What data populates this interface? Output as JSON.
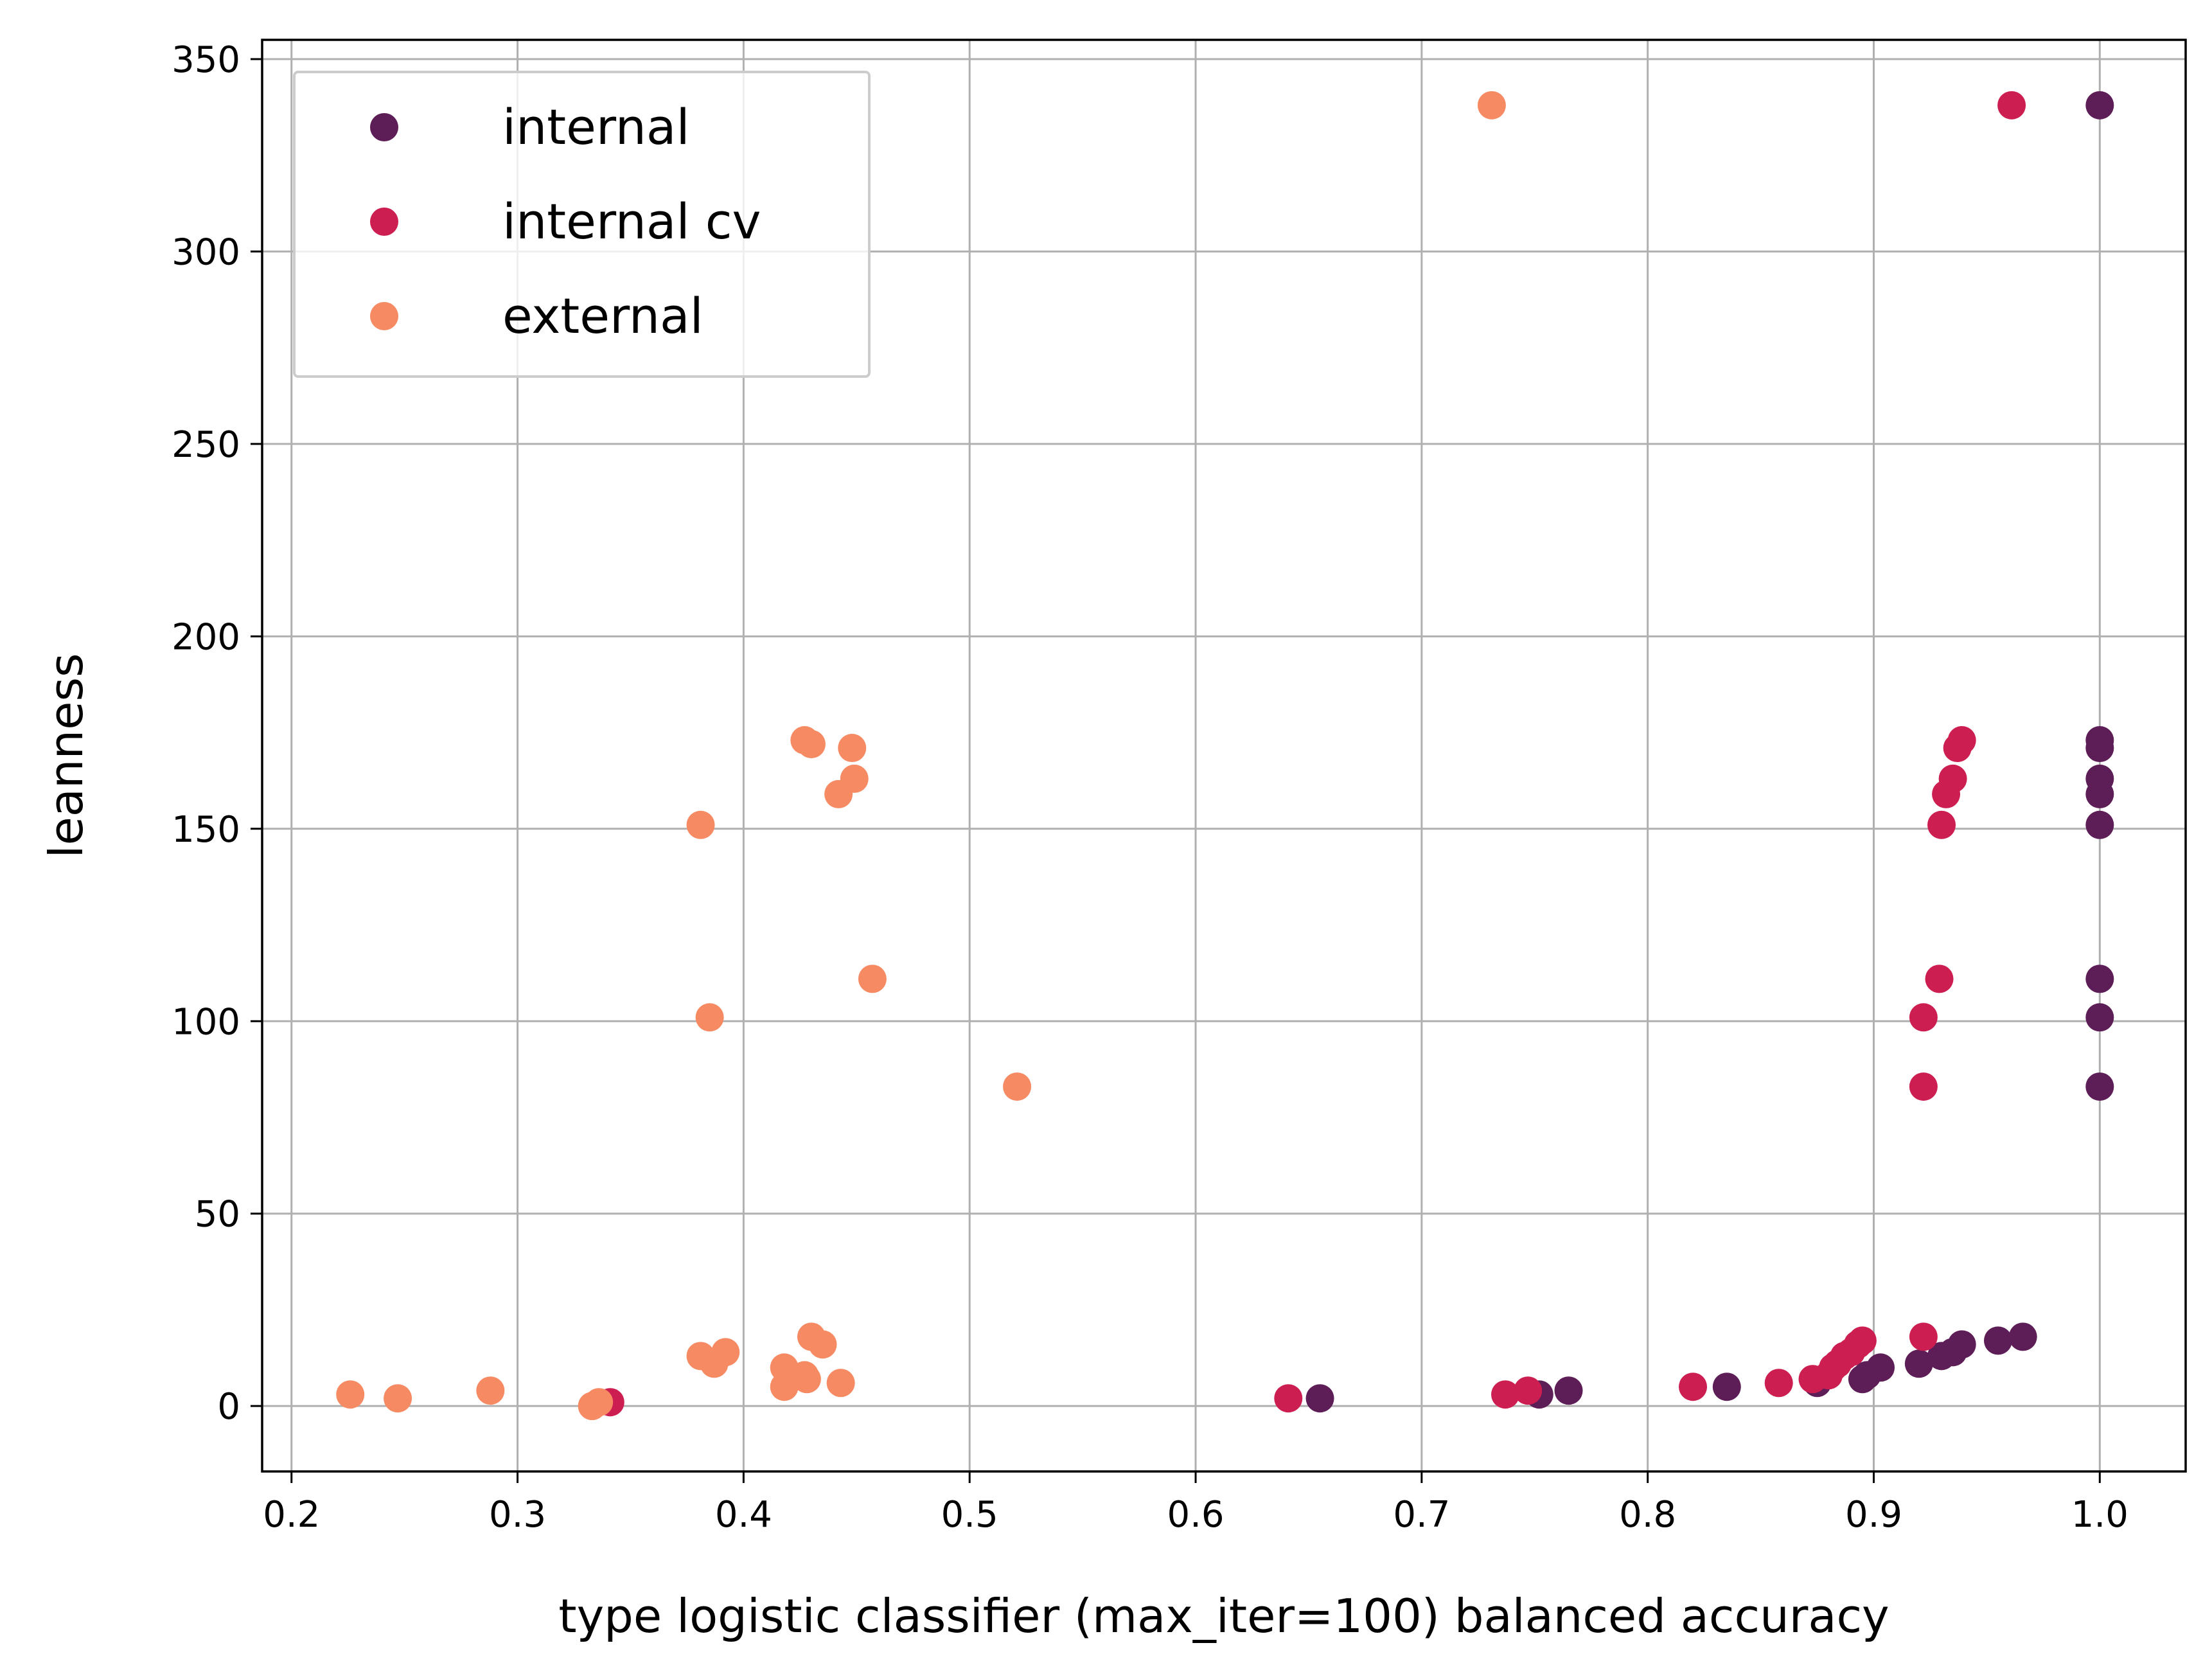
{
  "chart_data": {
    "type": "scatter",
    "xlabel": "type logistic classifier (max_iter=100) balanced accuracy",
    "ylabel": "leanness",
    "xlim": [
      0.187,
      1.038
    ],
    "ylim": [
      -17,
      355
    ],
    "xticks": [
      0.2,
      0.3,
      0.4,
      0.5,
      0.6,
      0.7,
      0.8,
      0.9,
      1.0
    ],
    "xtick_labels": [
      "0.2",
      "0.3",
      "0.4",
      "0.5",
      "0.6",
      "0.7",
      "0.8",
      "0.9",
      "1.0"
    ],
    "yticks": [
      0,
      50,
      100,
      150,
      200,
      250,
      300,
      350
    ],
    "ytick_labels": [
      "0",
      "50",
      "100",
      "150",
      "200",
      "250",
      "300",
      "350"
    ],
    "grid": true,
    "legend_position": "top-left",
    "series": [
      {
        "name": "internal",
        "color": "#5d1d56",
        "points": [
          [
            1.0,
            338
          ],
          [
            1.0,
            173
          ],
          [
            1.0,
            171
          ],
          [
            1.0,
            163
          ],
          [
            1.0,
            159
          ],
          [
            1.0,
            151
          ],
          [
            1.0,
            111
          ],
          [
            1.0,
            101
          ],
          [
            1.0,
            83
          ],
          [
            0.966,
            18
          ],
          [
            0.955,
            17
          ],
          [
            0.939,
            16
          ],
          [
            0.935,
            14
          ],
          [
            0.93,
            13
          ],
          [
            0.92,
            11
          ],
          [
            0.903,
            10
          ],
          [
            0.897,
            8
          ],
          [
            0.895,
            7
          ],
          [
            0.875,
            6
          ],
          [
            0.835,
            5
          ],
          [
            0.765,
            4
          ],
          [
            0.752,
            3
          ],
          [
            0.655,
            2
          ]
        ]
      },
      {
        "name": "internal cv",
        "color": "#cd1e51",
        "points": [
          [
            0.961,
            338
          ],
          [
            0.939,
            173
          ],
          [
            0.937,
            171
          ],
          [
            0.935,
            163
          ],
          [
            0.932,
            159
          ],
          [
            0.93,
            151
          ],
          [
            0.929,
            111
          ],
          [
            0.922,
            101
          ],
          [
            0.922,
            83
          ],
          [
            0.922,
            18
          ],
          [
            0.895,
            17
          ],
          [
            0.893,
            16
          ],
          [
            0.89,
            14
          ],
          [
            0.887,
            13
          ],
          [
            0.884,
            11
          ],
          [
            0.882,
            10
          ],
          [
            0.88,
            8
          ],
          [
            0.873,
            7
          ],
          [
            0.858,
            6
          ],
          [
            0.82,
            5
          ],
          [
            0.747,
            4
          ],
          [
            0.737,
            3
          ],
          [
            0.641,
            2
          ],
          [
            0.341,
            1
          ]
        ]
      },
      {
        "name": "external",
        "color": "#f58a63",
        "points": [
          [
            0.731,
            338
          ],
          [
            0.427,
            173
          ],
          [
            0.43,
            172
          ],
          [
            0.448,
            171
          ],
          [
            0.449,
            163
          ],
          [
            0.442,
            159
          ],
          [
            0.381,
            151
          ],
          [
            0.457,
            111
          ],
          [
            0.385,
            101
          ],
          [
            0.521,
            83
          ],
          [
            0.43,
            18
          ],
          [
            0.435,
            16
          ],
          [
            0.392,
            14
          ],
          [
            0.381,
            13
          ],
          [
            0.387,
            11
          ],
          [
            0.418,
            10
          ],
          [
            0.427,
            8
          ],
          [
            0.428,
            7
          ],
          [
            0.443,
            6
          ],
          [
            0.418,
            5
          ],
          [
            0.288,
            4
          ],
          [
            0.226,
            3
          ],
          [
            0.247,
            2
          ],
          [
            0.336,
            1
          ],
          [
            0.333,
            0
          ]
        ]
      }
    ]
  }
}
